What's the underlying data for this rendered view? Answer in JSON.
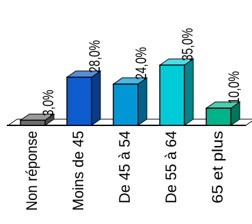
{
  "chart_data": {
    "type": "bar",
    "categories": [
      "Non réponse",
      "Moins de 45",
      "De 45 à 54",
      "De 55 à 64",
      "65 et plus"
    ],
    "values": [
      3.0,
      28.0,
      24.0,
      35.0,
      10.0
    ],
    "value_labels": [
      "3,0%",
      "28,0%",
      "24,0%",
      "35,0%",
      "10,0%"
    ],
    "colors": [
      "#6e6e6e",
      "#0f5ccd",
      "#0097d6",
      "#00ccd8",
      "#00b48a"
    ],
    "title": "",
    "xlabel": "",
    "ylabel": "",
    "ylim": [
      0,
      35
    ],
    "grid": false,
    "legend": "none",
    "bar_style": "3d"
  }
}
